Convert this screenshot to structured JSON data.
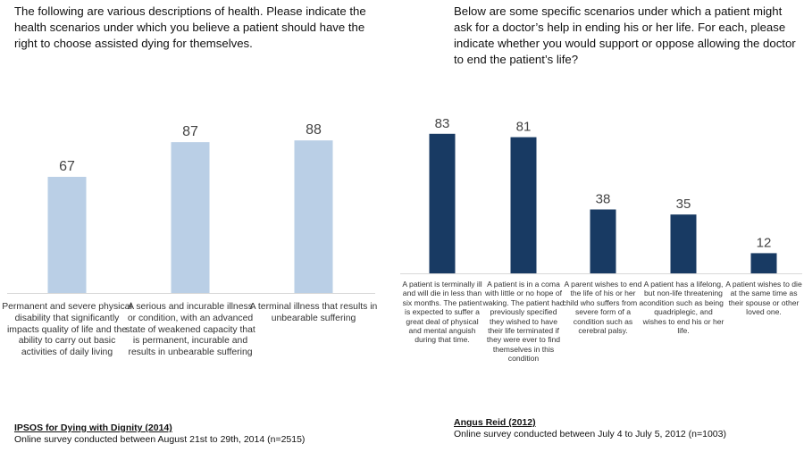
{
  "left_panel": {
    "question": "The following are various descriptions of health. Please indicate the health scenarios under which you believe a patient should have the right to choose assisted dying for themselves.",
    "source_title": "IPSOS for Dying with Dignity (2014)",
    "source_note": "Online survey conducted between August 21st to 29th, 2014  (n=2515)"
  },
  "right_panel": {
    "question": "Below are some specific scenarios under which a patient might ask for a doctor’s help in ending his or her life. For each, please indicate whether you would support or oppose allowing the doctor to end the patient’s life?",
    "source_title": "Angus Reid (2012)",
    "source_note": "Online survey conducted between July 4 to July 5, 2012  (n=1003)"
  },
  "chart_data": [
    {
      "type": "bar",
      "color": "#bacfe6",
      "ylim": [
        0,
        100
      ],
      "grid": false,
      "categories": [
        "Permanent and severe physical disability that significantly impacts quality of life and the ability to carry out basic activities of daily living",
        "A serious and incurable illness or condition, with an advanced state of weakened capacity that is permanent, incurable and results in unbearable suffering",
        "A terminal illness that results in unbearable suffering"
      ],
      "values": [
        67,
        87,
        88
      ]
    },
    {
      "type": "bar",
      "color": "#183a63",
      "ylim": [
        0,
        100
      ],
      "grid": false,
      "categories": [
        "A patient is terminally ill and will die in less than six months. The patient is expected to suffer a great deal of physical and mental anguish during that time.",
        "A patient is in a coma with little or no hope of waking. The patient had previously specified they wished to have their life terminated if they were ever to find themselves in this condition",
        "A parent wishes to end the life of his or her child who suffers from a severe form of a condition such as cerebral palsy.",
        "A patient has a lifelong, but non-life threatening condition such as being quadriplegic, and wishes to end his or her life.",
        "A patient wishes to die at the same time as their spouse or other loved one."
      ],
      "values": [
        83,
        81,
        38,
        35,
        12
      ]
    }
  ]
}
